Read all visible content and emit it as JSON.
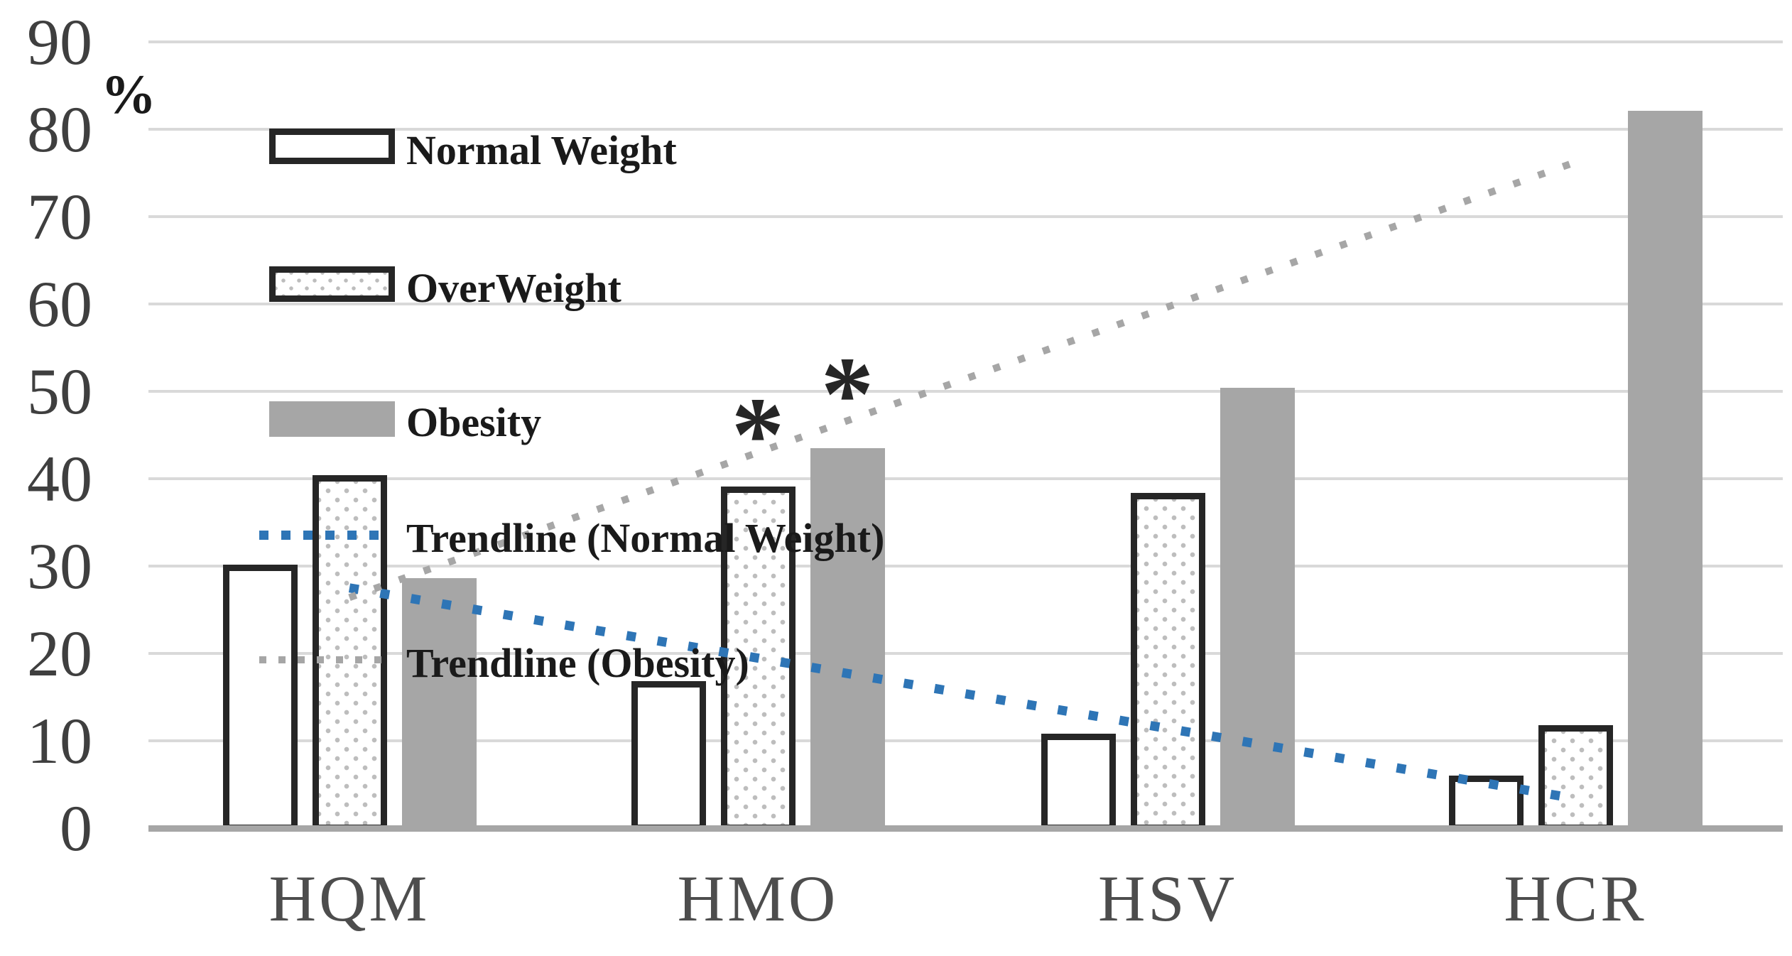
{
  "figure": {
    "background": "#ffffff",
    "unit_label": "%"
  },
  "chart_data": {
    "type": "bar",
    "title": "",
    "xlabel": "",
    "ylabel": "%",
    "ylim": [
      0,
      90
    ],
    "ytick_step": 10,
    "grid": true,
    "legend_position": "top-left",
    "categories": [
      "HQM",
      "HMO",
      "HSV",
      "HCR"
    ],
    "series": [
      {
        "name": "Normal Weight",
        "style": "outlined-white",
        "values": [
          30.2,
          16.8,
          10.8,
          6.0
        ]
      },
      {
        "name": "OverWeight",
        "style": "dotted-pattern",
        "values": [
          40.4,
          39.1,
          38.4,
          11.8
        ]
      },
      {
        "name": "Obesity",
        "style": "solid-gray",
        "values": [
          28.6,
          43.5,
          50.4,
          82.1
        ]
      }
    ],
    "trendlines": [
      {
        "name": "Trendline (Normal Weight)",
        "color": "#2e75b6",
        "style": "blue-dotted",
        "start_value": 27.5,
        "end_value": 3.5
      },
      {
        "name": "Trendline (Obesity)",
        "color": "#a6a6a6",
        "style": "gray-dotted",
        "start_value": 26.4,
        "end_value": 76.0
      }
    ],
    "annotations": [
      {
        "text": "*",
        "category": "HMO",
        "series": "OverWeight",
        "value": 46.3
      },
      {
        "text": "*",
        "category": "HMO",
        "series": "Obesity",
        "value": 50.9
      }
    ]
  },
  "colors": {
    "obesity_fill": "#a6a6a6",
    "bar_border": "#262626",
    "overweight_dot": "#bdbdbd",
    "gridline": "#d9d9d9",
    "axis_line": "#a6a6a6",
    "tick_text": "#3f3f3f",
    "category_text": "#4d4d4d",
    "trend_blue": "#2e75b6",
    "trend_gray": "#a6a6a6"
  }
}
